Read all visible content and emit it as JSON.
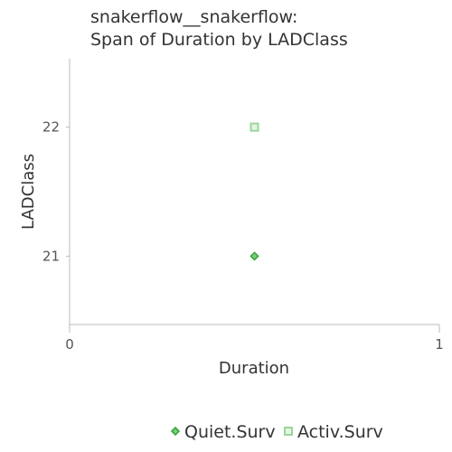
{
  "chart_data": {
    "type": "scatter",
    "title": [
      "snakerflow__snakerflow:",
      "Span of Duration by LADClass"
    ],
    "xlabel": "Duration",
    "ylabel": "LADClass",
    "xlim": [
      0,
      1
    ],
    "ylim": [
      20.47,
      22.53
    ],
    "x_ticks": [
      0,
      1
    ],
    "y_ticks": [
      21,
      22
    ],
    "grid": false,
    "legend_position": "bottom",
    "series": [
      {
        "name": "Quiet.Surv",
        "marker": "diamond",
        "color": "#3aa83a",
        "points": [
          {
            "x": 0.5,
            "y": 21
          }
        ]
      },
      {
        "name": "Activ.Surv",
        "marker": "square",
        "color": "#98d698",
        "points": [
          {
            "x": 0.5,
            "y": 22
          }
        ]
      }
    ]
  }
}
